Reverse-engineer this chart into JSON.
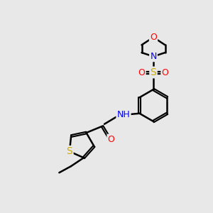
{
  "background_color": "#e8e8e8",
  "atom_colors": {
    "C": "#000000",
    "N": "#0000ff",
    "O": "#ff0000",
    "S": "#ccaa00",
    "H": "#000000"
  },
  "bond_color": "#000000",
  "line_width": 1.8,
  "figsize": [
    3.0,
    3.0
  ],
  "dpi": 100
}
